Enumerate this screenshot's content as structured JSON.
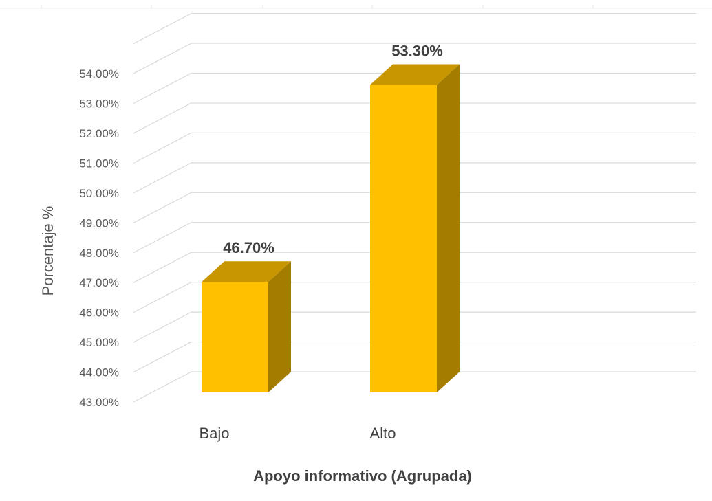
{
  "chart_data": {
    "type": "bar",
    "style": "3d-column",
    "categories": [
      "Bajo",
      "Alto"
    ],
    "values": [
      46.7,
      53.3
    ],
    "data_labels": [
      "46.70%",
      "53.30%"
    ],
    "xlabel": "Apoyo informativo (Agrupada)",
    "ylabel": "Porcentaje %",
    "ylim": [
      43,
      54
    ],
    "yticks": [
      "43.00%",
      "44.00%",
      "45.00%",
      "46.00%",
      "47.00%",
      "48.00%",
      "49.00%",
      "50.00%",
      "51.00%",
      "52.00%",
      "53.00%",
      "54.00%"
    ],
    "grid": true,
    "legend": "none",
    "colors": {
      "bar_front": "#FFC000",
      "bar_top": "#C79600",
      "bar_side": "#A47C00",
      "grid": "#D9D9D9"
    }
  }
}
